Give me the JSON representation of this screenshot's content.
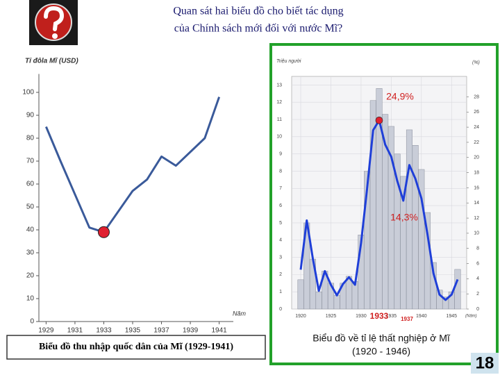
{
  "title_lines": [
    "Quan sát hai biểu đồ cho biết tác dụng",
    "của Chính sách mới đối với nước Mĩ?"
  ],
  "slide_number": "18",
  "chart_data": [
    {
      "type": "line",
      "y_label": "Tỉ đôla Mĩ (USD)",
      "x_label": "Năm",
      "caption": "Biểu đồ thu nhập quốc dân của Mĩ (1929-1941)",
      "x": [
        1929,
        1930,
        1932,
        1933,
        1935,
        1936,
        1937,
        1938,
        1940,
        1941
      ],
      "values": [
        85,
        70,
        41,
        39,
        57,
        62,
        72,
        68,
        80,
        98
      ],
      "color": "#3a5a9a",
      "highlight_index": 3,
      "highlight_color": "#e02030",
      "xlim": [
        1928.5,
        1941.5
      ],
      "xticks": [
        1929,
        1931,
        1933,
        1935,
        1937,
        1939,
        1941
      ],
      "ylim": [
        0,
        105
      ],
      "yticks": [
        0,
        10,
        20,
        30,
        40,
        50,
        60,
        70,
        80,
        90,
        100
      ],
      "grid": false
    },
    {
      "type": "bar_line",
      "y_label": "Triệu người",
      "y2_label": "(%)",
      "x_label": "(Năm)",
      "caption": [
        "Biểu đồ về tỉ lệ thất nghiệp ở Mĩ",
        "(1920 - 1946)"
      ],
      "annotations": [
        "24,9%",
        "14,3%",
        "1933",
        "1937"
      ],
      "x": [
        1920,
        1921,
        1922,
        1923,
        1924,
        1925,
        1926,
        1927,
        1928,
        1929,
        1930,
        1931,
        1932,
        1933,
        1934,
        1935,
        1936,
        1937,
        1938,
        1939,
        1940,
        1941,
        1942,
        1943,
        1944,
        1945,
        1946
      ],
      "series": [
        {
          "type": "bar",
          "color": "#c9cdd8",
          "values": [
            1.7,
            5.0,
            2.9,
            1.0,
            2.2,
            1.5,
            0.8,
            1.5,
            1.9,
            1.6,
            4.3,
            8.0,
            12.1,
            12.8,
            11.3,
            10.6,
            9.0,
            7.7,
            10.4,
            9.5,
            8.1,
            5.6,
            2.7,
            1.1,
            0.7,
            1.0,
            2.3
          ]
        },
        {
          "type": "line",
          "axis": "y2",
          "color": "#1f3fd8",
          "values": [
            5.2,
            11.7,
            6.7,
            2.4,
            5.0,
            3.2,
            1.8,
            3.3,
            4.2,
            3.2,
            8.7,
            15.9,
            23.6,
            24.9,
            21.7,
            20.1,
            16.9,
            14.3,
            19.0,
            17.2,
            14.6,
            9.9,
            4.7,
            1.9,
            1.2,
            1.9,
            3.9
          ]
        }
      ],
      "highlight_index": 13,
      "highlight_color": "#e02030",
      "xlim": [
        1918.5,
        1947.5
      ],
      "xticks": [
        1920,
        1925,
        1930,
        1935,
        1940,
        1945
      ],
      "ylim": [
        0,
        13.5
      ],
      "yticks": [
        0,
        1,
        2,
        3,
        4,
        5,
        6,
        7,
        8,
        9,
        10,
        11,
        12,
        13
      ],
      "y2lim": [
        0,
        30.7
      ],
      "y2ticks": [
        0,
        2,
        4,
        6,
        8,
        10,
        12,
        14,
        16,
        18,
        20,
        22,
        24,
        26,
        28
      ],
      "grid": true
    }
  ]
}
